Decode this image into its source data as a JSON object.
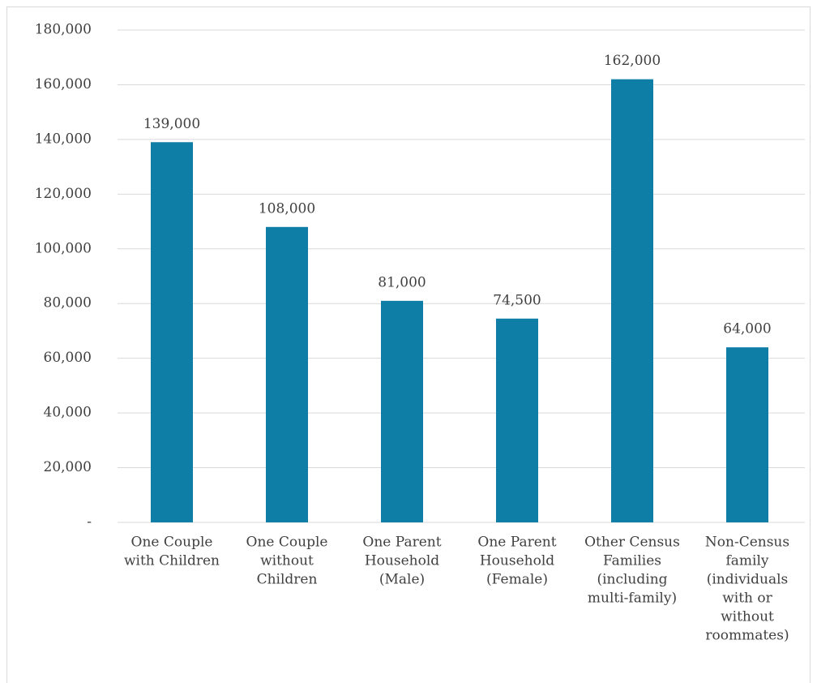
{
  "chart_data": {
    "type": "bar",
    "categories": [
      [
        "One Couple",
        "with Children"
      ],
      [
        "One Couple",
        "without",
        "Children"
      ],
      [
        "One Parent",
        "Household",
        "(Male)"
      ],
      [
        "One Parent",
        "Household",
        "(Female)"
      ],
      [
        "Other Census",
        "Families",
        "(including",
        "multi-family)"
      ],
      [
        "Non-Census",
        "family",
        "(individuals",
        "with or",
        "without",
        "roommates)"
      ]
    ],
    "values": [
      139000,
      108000,
      81000,
      74500,
      162000,
      64000
    ],
    "value_labels": [
      "139,000",
      "108,000",
      "81,000",
      "74,500",
      "162,000",
      "64,000"
    ],
    "color": "#0f7ea6",
    "ylim": [
      0,
      180000
    ],
    "yticks": [
      {
        "value": 0,
        "label": "-"
      },
      {
        "value": 20000,
        "label": "20,000"
      },
      {
        "value": 40000,
        "label": "40,000"
      },
      {
        "value": 60000,
        "label": "60,000"
      },
      {
        "value": 80000,
        "label": "80,000"
      },
      {
        "value": 100000,
        "label": "100,000"
      },
      {
        "value": 120000,
        "label": "120,000"
      },
      {
        "value": 140000,
        "label": "140,000"
      },
      {
        "value": 160000,
        "label": "160,000"
      },
      {
        "value": 180000,
        "label": "180,000"
      }
    ],
    "grid": true
  }
}
